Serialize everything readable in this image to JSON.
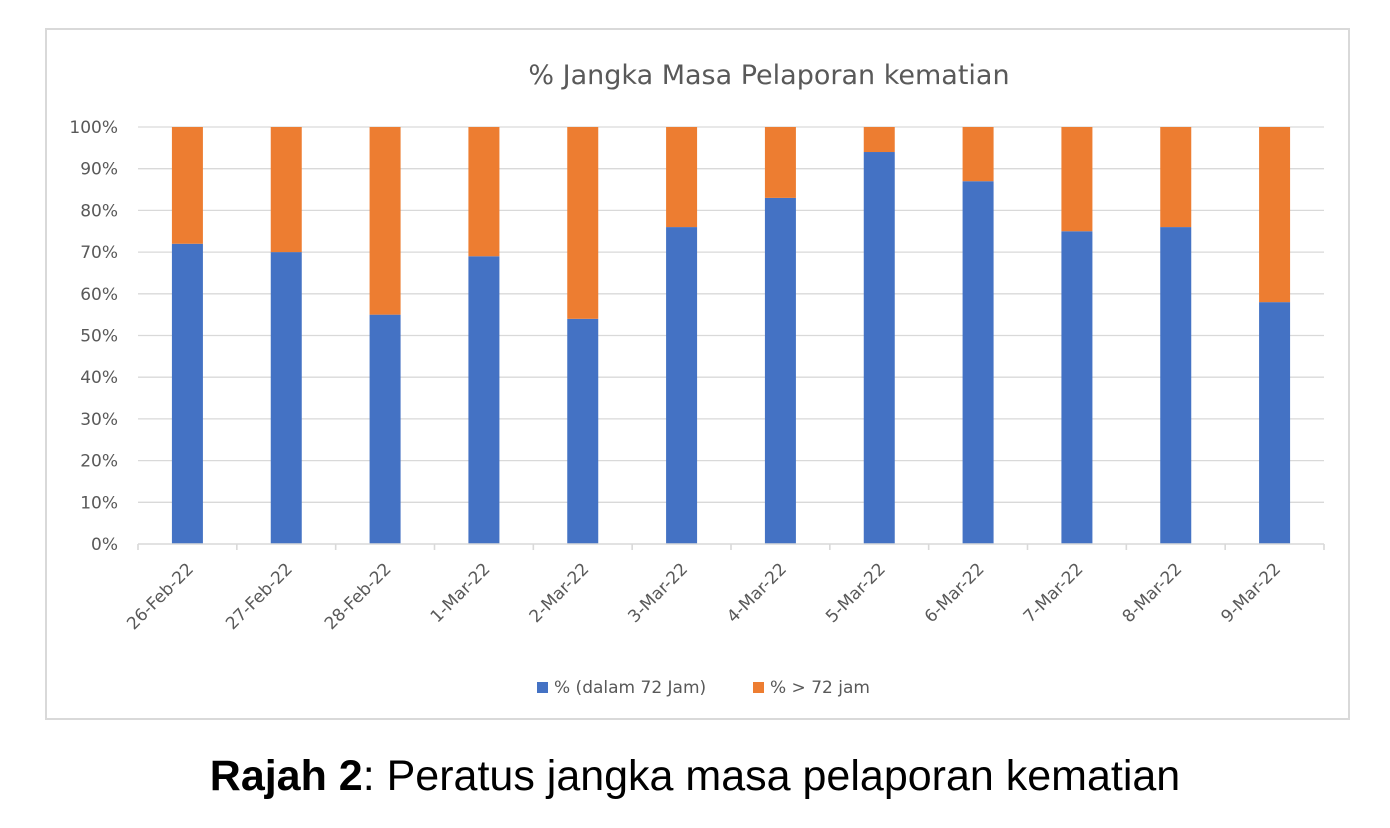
{
  "chart_data": {
    "type": "bar",
    "stacked": true,
    "title": "% Jangka Masa Pelaporan kematian",
    "categories": [
      "26-Feb-22",
      "27-Feb-22",
      "28-Feb-22",
      "1-Mar-22",
      "2-Mar-22",
      "3-Mar-22",
      "4-Mar-22",
      "5-Mar-22",
      "6-Mar-22",
      "7-Mar-22",
      "8-Mar-22",
      "9-Mar-22"
    ],
    "series": [
      {
        "name": "% (dalam 72 Jam)",
        "color": "#4472c4",
        "values": [
          72,
          70,
          55,
          69,
          54,
          76,
          83,
          94,
          87,
          75,
          76,
          58
        ]
      },
      {
        "name": "% > 72 jam",
        "color": "#ed7d31",
        "values": [
          28,
          30,
          45,
          31,
          46,
          24,
          17,
          6,
          13,
          25,
          24,
          42
        ]
      }
    ],
    "y_ticks": [
      "0%",
      "10%",
      "20%",
      "30%",
      "40%",
      "50%",
      "60%",
      "70%",
      "80%",
      "90%",
      "100%"
    ],
    "ylim": [
      0,
      100
    ],
    "xlabel": "",
    "ylabel": "",
    "grid": true,
    "legend": "bottom"
  },
  "caption": {
    "bold": "Rajah 2",
    "rest": ": Peratus jangka masa pelaporan kematian"
  }
}
